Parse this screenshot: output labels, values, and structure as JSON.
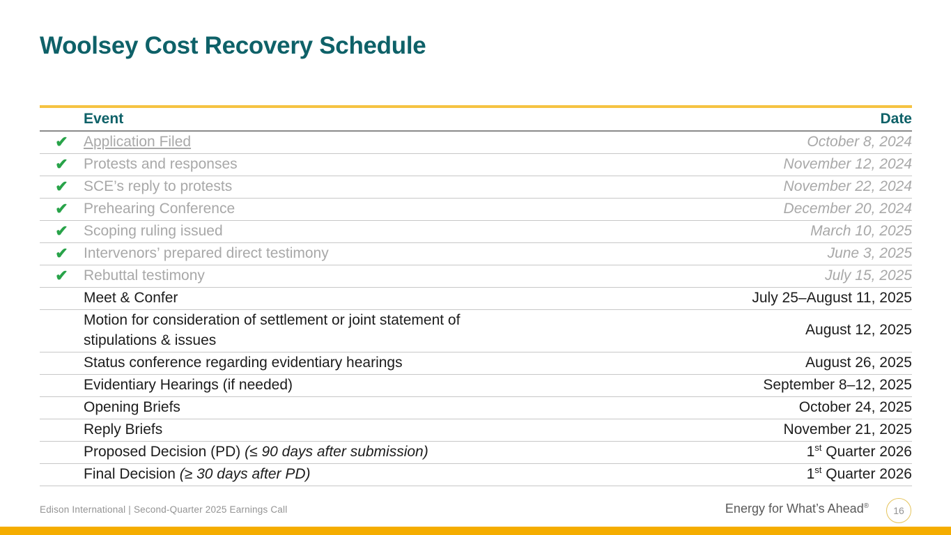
{
  "colors": {
    "teal": "#0e6168",
    "gold_line": "#f5c342",
    "bottom_bar": "#f5ad00",
    "green": "#28a349",
    "done_gray": "#a8a8a8",
    "text_black": "#1c1c1c",
    "row_line": "#c7c7c7",
    "header_line": "#8a8a8a",
    "footer_gray": "#939393",
    "tagline_gray": "#595959",
    "circle_border": "#e5c45c"
  },
  "slide": {
    "title": "Woolsey Cost Recovery Schedule"
  },
  "table": {
    "check_glyph": "✔",
    "headers": {
      "event": "Event",
      "date": "Date"
    },
    "rows": [
      {
        "done": true,
        "event_parts": [
          {
            "t": "Application Filed",
            "link": true
          }
        ],
        "date_parts": [
          {
            "t": "October 8, 2024"
          }
        ]
      },
      {
        "done": true,
        "event_parts": [
          {
            "t": "Protests and responses"
          }
        ],
        "date_parts": [
          {
            "t": "November 12, 2024"
          }
        ]
      },
      {
        "done": true,
        "event_parts": [
          {
            "t": "SCE’s reply to protests"
          }
        ],
        "date_parts": [
          {
            "t": "November 22, 2024"
          }
        ]
      },
      {
        "done": true,
        "event_parts": [
          {
            "t": "Prehearing Conference"
          }
        ],
        "date_parts": [
          {
            "t": "December 20, 2024"
          }
        ]
      },
      {
        "done": true,
        "event_parts": [
          {
            "t": "Scoping ruling issued"
          }
        ],
        "date_parts": [
          {
            "t": "March 10, 2025"
          }
        ]
      },
      {
        "done": true,
        "event_parts": [
          {
            "t": "Intervenors’ prepared direct testimony"
          }
        ],
        "date_parts": [
          {
            "t": "June 3, 2025"
          }
        ]
      },
      {
        "done": true,
        "event_parts": [
          {
            "t": "Rebuttal testimony"
          }
        ],
        "date_parts": [
          {
            "t": "July 15, 2025"
          }
        ]
      },
      {
        "done": false,
        "event_parts": [
          {
            "t": "Meet & Confer"
          }
        ],
        "date_parts": [
          {
            "t": "July 25–August 11, 2025"
          }
        ]
      },
      {
        "done": false,
        "event_parts": [
          {
            "t": "Motion for consideration of settlement or joint statement of\nstipulations & issues"
          }
        ],
        "date_parts": [
          {
            "t": "August 12, 2025"
          }
        ]
      },
      {
        "done": false,
        "event_parts": [
          {
            "t": "Status conference regarding evidentiary hearings"
          }
        ],
        "date_parts": [
          {
            "t": "August 26, 2025"
          }
        ]
      },
      {
        "done": false,
        "event_parts": [
          {
            "t": "Evidentiary Hearings (if needed)"
          }
        ],
        "date_parts": [
          {
            "t": "September 8–12, 2025"
          }
        ]
      },
      {
        "done": false,
        "event_parts": [
          {
            "t": "Opening Briefs"
          }
        ],
        "date_parts": [
          {
            "t": "October 24, 2025"
          }
        ]
      },
      {
        "done": false,
        "event_parts": [
          {
            "t": "Reply Briefs"
          }
        ],
        "date_parts": [
          {
            "t": "November 21, 2025"
          }
        ]
      },
      {
        "done": false,
        "event_parts": [
          {
            "t": "Proposed Decision (PD) "
          },
          {
            "t": "(≤ 90 days after submission)",
            "italic": true
          }
        ],
        "date_parts": [
          {
            "t": "1"
          },
          {
            "t": "st",
            "sup": true
          },
          {
            "t": " Quarter 2026"
          }
        ]
      },
      {
        "done": false,
        "event_parts": [
          {
            "t": "Final Decision "
          },
          {
            "t": "(≥ 30 days after PD)",
            "italic": true
          }
        ],
        "date_parts": [
          {
            "t": "1"
          },
          {
            "t": "st",
            "sup": true
          },
          {
            "t": " Quarter 2026"
          }
        ]
      }
    ]
  },
  "footer": {
    "left_text": "Edison International | Second-Quarter 2025 Earnings Call",
    "tagline": "Energy for What’s Ahead",
    "tagline_mark": "®",
    "page_number": "16"
  }
}
